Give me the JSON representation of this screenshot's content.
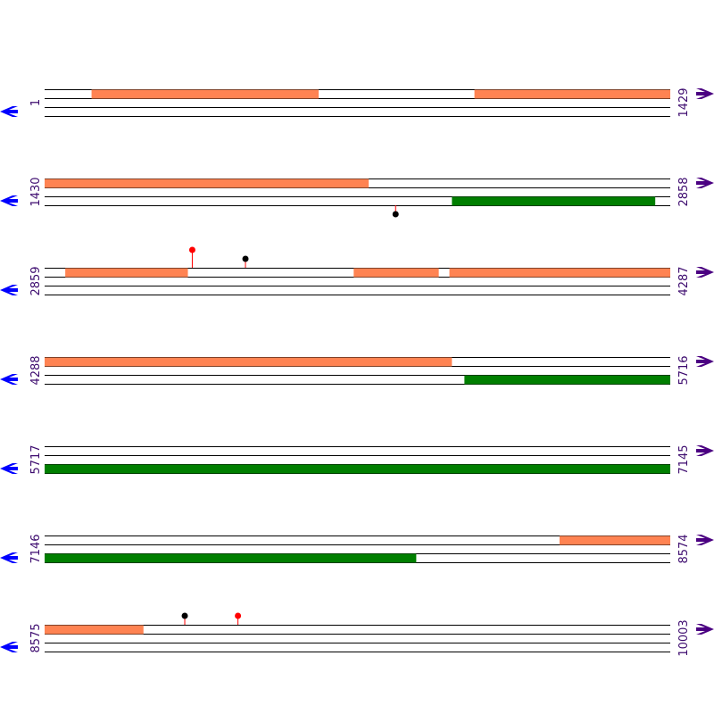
{
  "colors": {
    "forward_feature": "#ff8352",
    "reverse_feature": "#007f00",
    "strand_line": "#000000",
    "marker_stem": "#ff0000",
    "marker_red": "#ff0000",
    "marker_black": "#000000",
    "right_arrow": "#4b0082",
    "left_arrow": "#0000ff",
    "label": "#3c0a6e"
  },
  "icons": {
    "right": "forward-arrow-icon",
    "left": "reverse-arrow-icon"
  },
  "sequence_map": {
    "rows": [
      {
        "start": "1",
        "end": "1429",
        "forward_features": [
          [
            0.075,
            0.438
          ],
          [
            0.687,
            1.0
          ]
        ],
        "reverse_features": [],
        "markers": []
      },
      {
        "start": "1430",
        "end": "2858",
        "forward_features": [
          [
            0.0,
            0.518
          ]
        ],
        "reverse_features": [
          [
            0.651,
            0.976
          ]
        ],
        "markers": [
          {
            "pos": 0.561,
            "side": "below",
            "color": "black"
          }
        ]
      },
      {
        "start": "2859",
        "end": "4287",
        "forward_features": [
          [
            0.033,
            0.229
          ],
          [
            0.494,
            0.63
          ],
          [
            0.647,
            1.0
          ]
        ],
        "reverse_features": [],
        "markers": [
          {
            "pos": 0.236,
            "side": "above",
            "height": 2,
            "color": "red"
          },
          {
            "pos": 0.321,
            "side": "above",
            "height": 1,
            "color": "black"
          }
        ]
      },
      {
        "start": "4288",
        "end": "5716",
        "forward_features": [
          [
            0.0,
            0.651
          ]
        ],
        "reverse_features": [
          [
            0.671,
            1.0
          ]
        ],
        "markers": []
      },
      {
        "start": "5717",
        "end": "7145",
        "forward_features": [],
        "reverse_features": [
          [
            0.0,
            1.0
          ]
        ],
        "markers": []
      },
      {
        "start": "7146",
        "end": "8574",
        "forward_features": [
          [
            0.823,
            1.0
          ]
        ],
        "reverse_features": [
          [
            0.0,
            0.594
          ]
        ],
        "markers": []
      },
      {
        "start": "8575",
        "end": "10003",
        "forward_features": [
          [
            0.0,
            0.158
          ]
        ],
        "reverse_features": [],
        "markers": [
          {
            "pos": 0.224,
            "side": "above",
            "height": 1,
            "color": "black"
          },
          {
            "pos": 0.309,
            "side": "above",
            "height": 1,
            "color": "red"
          }
        ]
      }
    ]
  }
}
